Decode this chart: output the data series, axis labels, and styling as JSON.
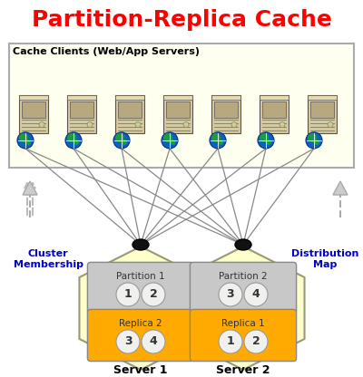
{
  "title": "Partition-Replica Cache",
  "title_color": "#ff0000",
  "title_fontsize": 18,
  "bg_color": "#ffffff",
  "cache_clients_label": "Cache Clients (Web/App Servers)",
  "cache_box_color": "#fffff0",
  "cache_box_edge": "#888888",
  "num_servers": 7,
  "partition1_label": "Partition 1",
  "partition2_label": "Partition 2",
  "replica1_label": "Replica 1",
  "replica2_label": "Replica 2",
  "partition_bg": "#c8c8c8",
  "replica_bg": "#ffaa00",
  "left_numbers_top": [
    "1",
    "2"
  ],
  "left_numbers_bot": [
    "3",
    "4"
  ],
  "right_numbers_top": [
    "3",
    "4"
  ],
  "right_numbers_bot": [
    "1",
    "2"
  ],
  "server1_label": "Server 1",
  "server2_label": "Server 2",
  "cluster_label": "Cluster\nMembership",
  "distribution_label": "Distribution\nMap",
  "label_color": "#0000cc",
  "hex_fill": "#ffffcc",
  "hex_edge": "#aaaaaa"
}
